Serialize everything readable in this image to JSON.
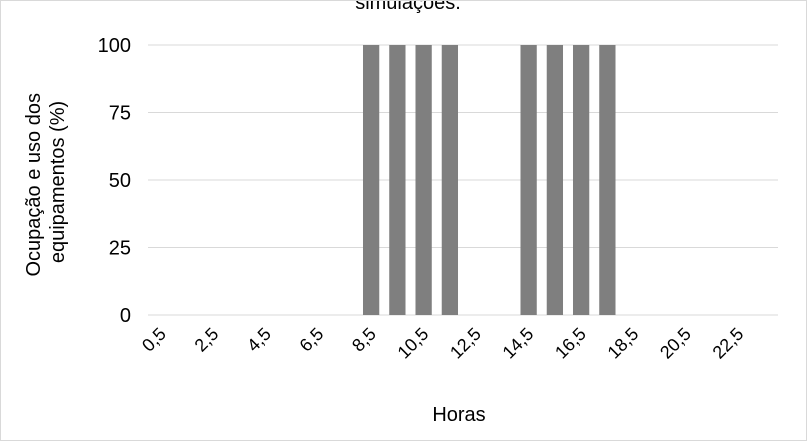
{
  "chart_data": {
    "type": "bar",
    "title": "simulações.",
    "xlabel": "Horas",
    "ylabel_lines": [
      "Ocupação e uso dos",
      "equipamentos (%)"
    ],
    "ylim": [
      0,
      100
    ],
    "yticks": [
      "0",
      "25",
      "50",
      "75",
      "100"
    ],
    "grid": true,
    "legend": "none",
    "bar_color": "#7f7f7f",
    "grid_color": "#d9d9d9",
    "categories": [
      "0,5",
      "1,5",
      "2,5",
      "3,5",
      "4,5",
      "5,5",
      "6,5",
      "7,5",
      "8,5",
      "9,5",
      "10,5",
      "11,5",
      "12,5",
      "13,5",
      "14,5",
      "15,5",
      "16,5",
      "17,5",
      "18,5",
      "19,5",
      "20,5",
      "21,5",
      "22,5",
      "23,5"
    ],
    "tick_labels_shown": [
      "0,5",
      "2,5",
      "4,5",
      "6,5",
      "8,5",
      "10,5",
      "12,5",
      "14,5",
      "16,5",
      "18,5",
      "20,5",
      "22,5"
    ],
    "values": [
      0,
      0,
      0,
      0,
      0,
      0,
      0,
      0,
      100,
      100,
      100,
      100,
      0,
      0,
      100,
      100,
      100,
      100,
      0,
      0,
      0,
      0,
      0,
      0
    ]
  }
}
